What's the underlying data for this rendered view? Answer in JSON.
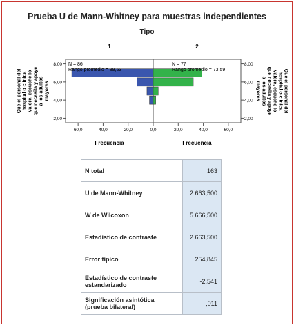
{
  "chart_data": {
    "type": "bar",
    "orientation": "horizontal",
    "title": "Prueba U de Mann-Whitney para muestras independientes",
    "group_title": "Tipo",
    "y_label": "Que el personal del hospital o clínica valore, escuche lo que necesita y apoye a los adultos mayores",
    "x_label": "Frecuencia",
    "y_ticks": [
      "2,00",
      "4,00",
      "6,00",
      "8,00"
    ],
    "y_values": [
      2,
      3,
      4,
      5,
      6,
      7
    ],
    "ylim": [
      1.5,
      8.5
    ],
    "x_ticks": [
      "60,0",
      "40,0",
      "20,0",
      "0,0"
    ],
    "x_ticks_right": [
      "0,0",
      "20,0",
      "40,0",
      "60,0"
    ],
    "xlim": [
      0,
      70
    ],
    "panels": [
      {
        "name": "1",
        "n_label": "N = 86",
        "rank_label": "Rango promedio = 89,53",
        "color": "#3a56ae",
        "values": [
          0,
          0,
          3,
          5,
          13,
          65
        ]
      },
      {
        "name": "2",
        "n_label": "N = 77",
        "rank_label": "Rango promedio = 73,59",
        "color": "#33b24a",
        "values": [
          0,
          0,
          2,
          4,
          32,
          39
        ]
      }
    ]
  },
  "stats": [
    {
      "label": "N total",
      "value": "163"
    },
    {
      "label": "U de Mann-Whitney",
      "value": "2.663,500"
    },
    {
      "label": "W de Wilcoxon",
      "value": "5.666,500"
    },
    {
      "label": "Estadístico de contraste",
      "value": "2.663,500"
    },
    {
      "label": "Error típico",
      "value": "254,845"
    },
    {
      "label": "Estadístico de contraste estandarizado",
      "value": "-2,541"
    },
    {
      "label": "Significación asintótica (prueba bilateral)",
      "value": ",011"
    }
  ]
}
